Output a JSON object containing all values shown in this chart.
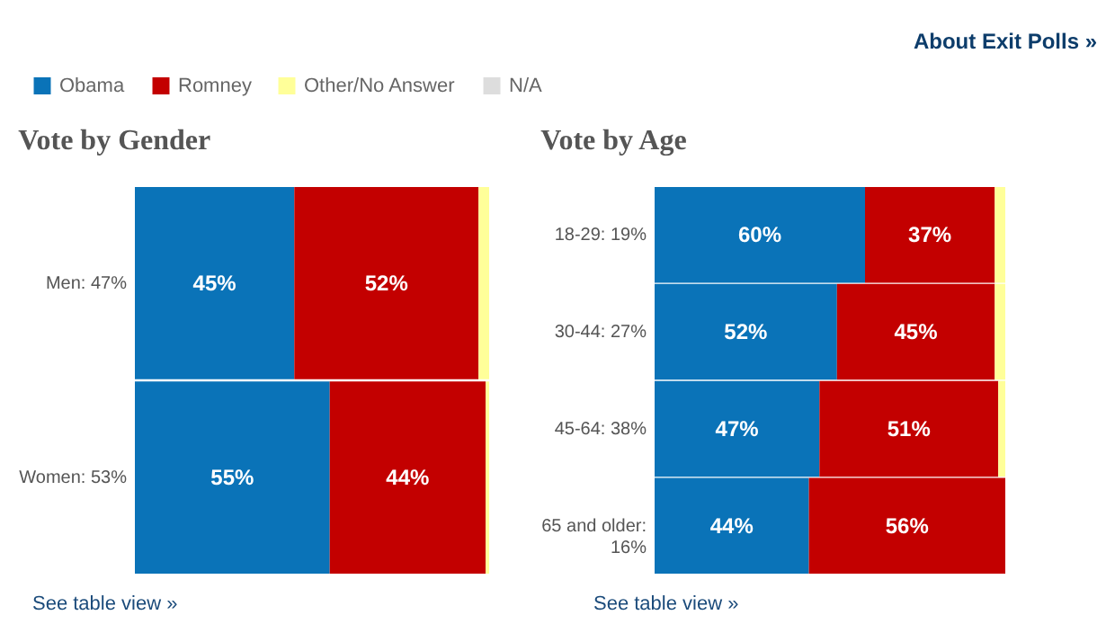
{
  "chart_data": [
    {
      "type": "bar",
      "title": "Vote by Gender",
      "orientation": "horizontal",
      "stacked": true,
      "legend": "top left",
      "tick_labels": "y",
      "xlim": [
        0,
        100
      ],
      "categories": [
        "Men: 47%",
        "Women: 53%"
      ],
      "series": [
        {
          "name": "Obama",
          "color": "#0a73b8",
          "values": [
            45,
            55
          ],
          "value_labels": [
            "45%",
            "55%"
          ]
        },
        {
          "name": "Romney",
          "color": "#c30000",
          "values": [
            52,
            44
          ],
          "value_labels": [
            "52%",
            "44%"
          ]
        },
        {
          "name": "Other/No Answer",
          "color": "#ffff99",
          "values": [
            3,
            1
          ],
          "value_labels": [
            null,
            null
          ]
        },
        {
          "name": "N/A",
          "color": "#dddddd",
          "values": [
            0,
            0
          ],
          "value_labels": [
            null,
            null
          ]
        }
      ],
      "annotations": [
        "See table view »"
      ]
    },
    {
      "type": "bar",
      "title": "Vote by Age",
      "orientation": "horizontal",
      "stacked": true,
      "legend": "top left",
      "tick_labels": "y",
      "xlim": [
        0,
        100
      ],
      "categories": [
        "18-29: 19%",
        "30-44: 27%",
        "45-64: 38%",
        "65 and older: 16%"
      ],
      "series": [
        {
          "name": "Obama",
          "color": "#0a73b8",
          "values": [
            60,
            52,
            47,
            44
          ],
          "value_labels": [
            "60%",
            "52%",
            "47%",
            "44%"
          ]
        },
        {
          "name": "Romney",
          "color": "#c30000",
          "values": [
            37,
            45,
            51,
            56
          ],
          "value_labels": [
            "37%",
            "45%",
            "51%",
            "56%"
          ]
        },
        {
          "name": "Other/No Answer",
          "color": "#ffff99",
          "values": [
            3,
            3,
            2,
            0
          ],
          "value_labels": [
            null,
            null,
            null,
            null
          ]
        }
      ],
      "annotations": [
        "About Exit Polls »",
        "See table view »"
      ]
    }
  ]
}
